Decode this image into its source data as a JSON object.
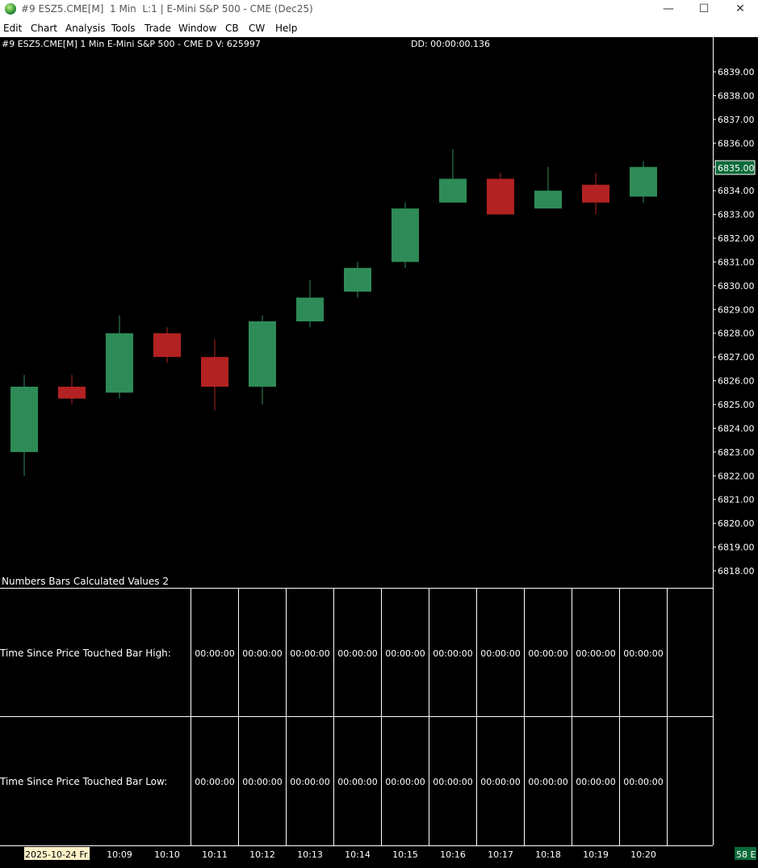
{
  "window": {
    "title": "#9 ESZ5.CME[M]  1 Min  L:1 | E-Mini S&P 500 - CME (Dec25)"
  },
  "window_controls": {
    "minimize": "—",
    "maximize": "☐",
    "close": "✕"
  },
  "menu": [
    "Edit",
    "Chart",
    "Analysis",
    "Tools",
    "Trade",
    "Window",
    "CB",
    "CW",
    "Help"
  ],
  "chart_header": {
    "text": "#9 ESZ5.CME[M]  1 Min  E-Mini S&P 500 - CME D V: 625997",
    "dd": "DD: 00:00:00.136"
  },
  "colors": {
    "up": "#2e8b57",
    "down": "#b22222",
    "wick_up": "#2e8b57",
    "wick_down": "#b22222",
    "axis_text": "#ffffff",
    "current_price_box": "#0b6b3a"
  },
  "chart_data": {
    "type": "candlestick",
    "y_ticks": [
      6839,
      6838,
      6837,
      6836,
      6835,
      6834,
      6833,
      6832,
      6831,
      6830,
      6829,
      6828,
      6827,
      6826,
      6825,
      6824,
      6823,
      6822,
      6821,
      6820,
      6819,
      6818
    ],
    "y_tick_labels": [
      "6839.00",
      "6838.00",
      "6837.00",
      "6836.00",
      "6835.00",
      "6834.00",
      "6833.00",
      "6832.00",
      "6831.00",
      "6830.00",
      "6829.00",
      "6828.00",
      "6827.00",
      "6826.00",
      "6825.00",
      "6824.00",
      "6823.00",
      "6822.00",
      "6821.00",
      "6820.00",
      "6819.00",
      "6818.00"
    ],
    "current_price_label": "6835.00",
    "x_labels": [
      "2025-10-24 Fr",
      "10:09",
      "10:10",
      "10:11",
      "10:12",
      "10:13",
      "10:14",
      "10:15",
      "10:16",
      "10:17",
      "10:18",
      "10:19",
      "10:20"
    ],
    "candles": [
      {
        "open": 6823.0,
        "high": 6826.25,
        "low": 6822.0,
        "close": 6825.75
      },
      {
        "open": 6825.75,
        "high": 6826.25,
        "low": 6825.0,
        "close": 6825.25
      },
      {
        "open": 6825.5,
        "high": 6828.75,
        "low": 6825.25,
        "close": 6828.0
      },
      {
        "open": 6828.0,
        "high": 6828.25,
        "low": 6826.75,
        "close": 6827.0
      },
      {
        "open": 6827.0,
        "high": 6827.75,
        "low": 6824.75,
        "close": 6825.75
      },
      {
        "open": 6825.75,
        "high": 6828.75,
        "low": 6825.0,
        "close": 6828.5
      },
      {
        "open": 6828.5,
        "high": 6830.25,
        "low": 6828.25,
        "close": 6829.5
      },
      {
        "open": 6829.75,
        "high": 6831.0,
        "low": 6829.5,
        "close": 6830.75
      },
      {
        "open": 6831.0,
        "high": 6833.5,
        "low": 6830.75,
        "close": 6833.25
      },
      {
        "open": 6833.5,
        "high": 6835.75,
        "low": 6833.5,
        "close": 6834.5
      },
      {
        "open": 6834.5,
        "high": 6834.75,
        "low": 6833.0,
        "close": 6833.0
      },
      {
        "open": 6833.25,
        "high": 6835.0,
        "low": 6833.25,
        "close": 6834.0
      },
      {
        "open": 6834.25,
        "high": 6834.75,
        "low": 6833.0,
        "close": 6833.5
      },
      {
        "open": 6833.75,
        "high": 6835.25,
        "low": 6833.5,
        "close": 6835.0
      }
    ]
  },
  "study": {
    "title": "Numbers Bars Calculated Values 2",
    "rows": [
      {
        "label": "Time Since Price Touched Bar High:",
        "values": [
          "00:00:00",
          "00:00:00",
          "00:00:00",
          "00:00:00",
          "00:00:00",
          "00:00:00",
          "00:00:00",
          "00:00:00",
          "00:00:00",
          "00:00:00"
        ]
      },
      {
        "label": "Time Since Price Touched Bar Low:",
        "values": [
          "00:00:00",
          "00:00:00",
          "00:00:00",
          "00:00:00",
          "00:00:00",
          "00:00:00",
          "00:00:00",
          "00:00:00",
          "00:00:00",
          "00:00:00"
        ]
      }
    ]
  },
  "corner_badge": "58 E"
}
